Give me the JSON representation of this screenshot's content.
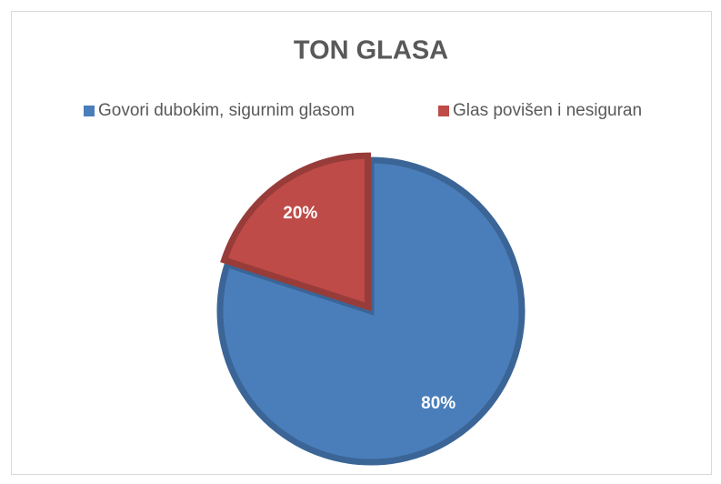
{
  "chart_data": {
    "type": "pie",
    "title": "TON GLASA",
    "categories": [
      "Govori dubokim, sigurnim glasom",
      "Glas povišen i nesiguran"
    ],
    "values": [
      80,
      20
    ],
    "value_labels": [
      "80%",
      "20%"
    ],
    "colors": [
      "#4a7ebb",
      "#be4b48"
    ],
    "legend": "top"
  }
}
